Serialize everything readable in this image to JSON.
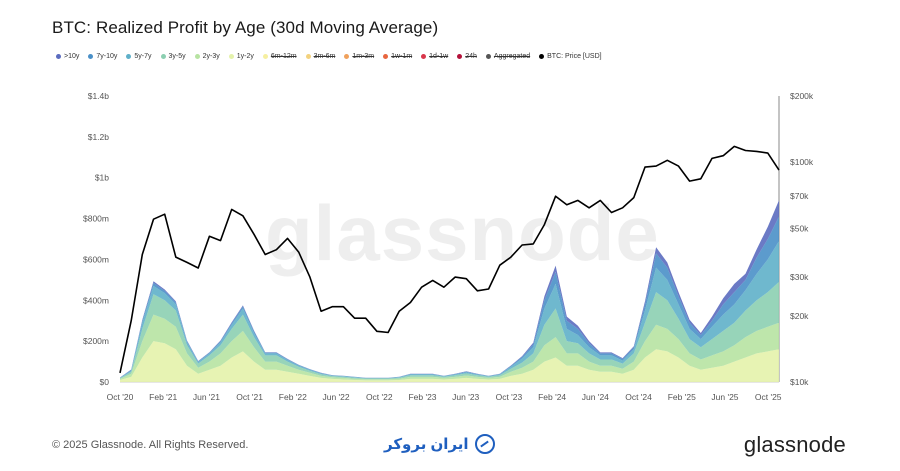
{
  "title": "BTC: Realized Profit by Age (30d Moving Average)",
  "legend": [
    {
      "label": ">10y",
      "color": "#5b6cbf",
      "struck": false
    },
    {
      "label": "7y-10y",
      "color": "#4a90c8",
      "struck": false
    },
    {
      "label": "5y-7y",
      "color": "#5fb0c9",
      "struck": false
    },
    {
      "label": "3y-5y",
      "color": "#8ccfb1",
      "struck": false
    },
    {
      "label": "2y-3y",
      "color": "#b7e3a2",
      "struck": false
    },
    {
      "label": "1y-2y",
      "color": "#e4f2ab",
      "struck": false
    },
    {
      "label": "6m-12m",
      "color": "#f6efa0",
      "struck": true
    },
    {
      "label": "3m-6m",
      "color": "#f3d27e",
      "struck": true
    },
    {
      "label": "1m-3m",
      "color": "#f0a15c",
      "struck": true
    },
    {
      "label": "1w-1m",
      "color": "#e8663f",
      "struck": true
    },
    {
      "label": "1d-1w",
      "color": "#d9364b",
      "struck": true
    },
    {
      "label": "24h",
      "color": "#b4123a",
      "struck": true
    },
    {
      "label": "Aggregated",
      "color": "#555555",
      "struck": true
    },
    {
      "label": "BTC: Price [USD]",
      "color": "#000000",
      "struck": false
    }
  ],
  "footer": {
    "copyright": "© 2025 Glassnode. All Rights Reserved.",
    "brand": "glassnode",
    "watermark": "glassnode",
    "broker": "ایران بروکر"
  },
  "chart_data": {
    "type": "area",
    "title": "BTC: Realized Profit by Age (30d Moving Average)",
    "x_tick_labels": [
      "Oct '20",
      "Feb '21",
      "Jun '21",
      "Oct '21",
      "Feb '22",
      "Jun '22",
      "Oct '22",
      "Feb '23",
      "Jun '23",
      "Oct '23",
      "Feb '24",
      "Jun '24",
      "Oct '24",
      "Feb '25",
      "Jun '25",
      "Oct '25"
    ],
    "y_left_ticks": [
      "$0",
      "$200m",
      "$400m",
      "$600m",
      "$800m",
      "$1b",
      "$1.2b",
      "$1.4b"
    ],
    "y_left_range": [
      0,
      1400
    ],
    "y_left_unit": "USD millions",
    "y_right_ticks": [
      "$10k",
      "$20k",
      "$30k",
      "$50k",
      "$70k",
      "$100k",
      "$200k"
    ],
    "y_right_values": [
      10000,
      20000,
      30000,
      50000,
      70000,
      100000,
      200000
    ],
    "y_right_scale": "log",
    "x_dates": [
      "2020-10",
      "2020-12",
      "2021-02",
      "2021-03",
      "2021-04",
      "2021-05",
      "2021-06",
      "2021-07",
      "2021-08",
      "2021-09",
      "2021-10",
      "2021-11",
      "2021-12",
      "2022-01",
      "2022-02",
      "2022-03",
      "2022-04",
      "2022-05",
      "2022-06",
      "2022-07",
      "2022-08",
      "2022-09",
      "2022-10",
      "2022-11",
      "2022-12",
      "2023-01",
      "2023-02",
      "2023-03",
      "2023-04",
      "2023-05",
      "2023-06",
      "2023-07",
      "2023-08",
      "2023-09",
      "2023-10",
      "2023-11",
      "2023-12",
      "2024-01",
      "2024-02",
      "2024-03",
      "2024-04",
      "2024-05",
      "2024-06",
      "2024-07",
      "2024-08",
      "2024-09",
      "2024-10",
      "2024-11",
      "2024-12",
      "2025-01",
      "2025-02",
      "2025-03",
      "2025-04",
      "2025-05",
      "2025-06",
      "2025-07",
      "2025-08",
      "2025-09",
      "2025-10",
      "2025-11"
    ],
    "series": [
      {
        "name": "1y-2y",
        "values": [
          10,
          25,
          120,
          200,
          190,
          160,
          80,
          40,
          60,
          80,
          120,
          150,
          100,
          60,
          60,
          50,
          40,
          30,
          20,
          15,
          12,
          10,
          8,
          8,
          8,
          10,
          15,
          15,
          15,
          12,
          15,
          20,
          15,
          12,
          15,
          30,
          40,
          60,
          100,
          120,
          80,
          80,
          60,
          50,
          50,
          40,
          60,
          120,
          160,
          150,
          120,
          80,
          60,
          70,
          80,
          100,
          120,
          140,
          150,
          160
        ]
      },
      {
        "name": "2y-3y",
        "values": [
          5,
          15,
          80,
          130,
          120,
          110,
          60,
          30,
          40,
          60,
          80,
          100,
          70,
          40,
          40,
          30,
          20,
          15,
          10,
          8,
          8,
          6,
          5,
          5,
          5,
          6,
          10,
          10,
          10,
          8,
          10,
          12,
          10,
          8,
          10,
          20,
          30,
          40,
          80,
          100,
          60,
          60,
          40,
          30,
          30,
          25,
          40,
          80,
          120,
          110,
          90,
          60,
          50,
          60,
          70,
          80,
          100,
          110,
          120,
          130
        ]
      },
      {
        "name": "3y-5y",
        "values": [
          3,
          10,
          60,
          100,
          90,
          80,
          40,
          20,
          30,
          40,
          60,
          80,
          50,
          30,
          30,
          20,
          15,
          10,
          8,
          6,
          6,
          5,
          4,
          4,
          4,
          5,
          8,
          8,
          8,
          6,
          8,
          10,
          8,
          6,
          8,
          15,
          25,
          40,
          100,
          140,
          60,
          50,
          40,
          30,
          30,
          25,
          40,
          90,
          160,
          140,
          100,
          70,
          60,
          80,
          100,
          110,
          130,
          150,
          170,
          200
        ]
      },
      {
        "name": "5y-7y",
        "values": [
          2,
          6,
          30,
          40,
          35,
          30,
          15,
          8,
          10,
          15,
          20,
          30,
          20,
          10,
          10,
          8,
          6,
          5,
          4,
          3,
          3,
          3,
          2,
          2,
          2,
          3,
          4,
          4,
          4,
          3,
          4,
          6,
          4,
          3,
          4,
          10,
          20,
          30,
          80,
          120,
          60,
          40,
          30,
          20,
          20,
          15,
          20,
          60,
          120,
          100,
          70,
          50,
          40,
          60,
          80,
          90,
          100,
          130,
          160,
          200
        ]
      },
      {
        "name": "7y-10y",
        "values": [
          1,
          3,
          10,
          15,
          12,
          10,
          5,
          3,
          4,
          5,
          8,
          10,
          8,
          4,
          4,
          3,
          2,
          2,
          2,
          1,
          1,
          1,
          1,
          1,
          1,
          1,
          2,
          2,
          2,
          1,
          2,
          3,
          2,
          1,
          2,
          4,
          8,
          15,
          40,
          60,
          40,
          30,
          20,
          10,
          10,
          8,
          10,
          30,
          70,
          60,
          40,
          30,
          20,
          30,
          50,
          60,
          50,
          80,
          100,
          120
        ]
      },
      {
        "name": ">10y",
        "values": [
          1,
          2,
          5,
          8,
          6,
          5,
          3,
          2,
          2,
          3,
          4,
          5,
          4,
          2,
          2,
          2,
          1,
          1,
          1,
          1,
          1,
          1,
          1,
          1,
          1,
          1,
          1,
          1,
          1,
          1,
          1,
          2,
          1,
          1,
          1,
          2,
          4,
          8,
          20,
          30,
          20,
          15,
          10,
          5,
          5,
          4,
          5,
          15,
          30,
          25,
          20,
          15,
          10,
          20,
          30,
          40,
          30,
          40,
          60,
          80
        ]
      }
    ],
    "price_series": {
      "name": "BTC: Price [USD]",
      "values": [
        11000,
        19000,
        38000,
        55000,
        58000,
        37000,
        35000,
        33000,
        46000,
        44000,
        61000,
        57000,
        47000,
        38000,
        40000,
        45000,
        39000,
        30000,
        21000,
        22000,
        22000,
        19500,
        19500,
        17000,
        16800,
        21000,
        23000,
        27000,
        29000,
        27000,
        30000,
        29500,
        26000,
        26500,
        34000,
        37000,
        42000,
        42500,
        52000,
        70000,
        64000,
        67000,
        62000,
        67000,
        59000,
        62000,
        69000,
        95000,
        96000,
        102000,
        96000,
        82000,
        84000,
        104000,
        107000,
        118000,
        113000,
        112000,
        110000,
        92000
      ]
    }
  }
}
